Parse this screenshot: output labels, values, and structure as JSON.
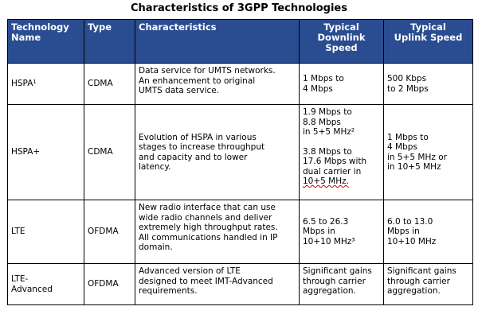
{
  "title": "Characteristics of 3GPP Technologies",
  "headers": {
    "technology_name": [
      "Technology",
      "Name"
    ],
    "type": "Type",
    "characteristics": "Characteristics",
    "downlink": [
      "Typical",
      "Downlink",
      "Speed"
    ],
    "uplink": [
      "Typical",
      "Uplink Speed"
    ]
  },
  "rows": [
    {
      "name": [
        "HSPA¹"
      ],
      "type": "CDMA",
      "characteristics": [
        "Data service for UMTS networks.",
        "An enhancement to original",
        "UMTS data service."
      ],
      "downlink": [
        "1 Mbps to",
        "4 Mbps"
      ],
      "uplink": [
        "500 Kbps",
        "to 2 Mbps"
      ]
    },
    {
      "name": [
        "HSPA+"
      ],
      "type": "CDMA",
      "characteristics": [
        "Evolution of HSPA in various",
        "stages to increase throughput",
        "and capacity and to lower",
        "latency."
      ],
      "downlink_a": [
        "1.9 Mbps to",
        "8.8 Mbps",
        "in 5+5 MHz²"
      ],
      "downlink_b": [
        "3.8 Mbps to",
        "17.6 Mbps with",
        "dual carrier in",
        "10+5 MHz."
      ],
      "uplink": [
        "1 Mbps to",
        "4 Mbps",
        "in 5+5 MHz or",
        "in 10+5 MHz"
      ]
    },
    {
      "name": [
        "LTE"
      ],
      "type": "OFDMA",
      "characteristics": [
        "New radio interface that can use",
        "wide radio channels and deliver",
        "extremely high throughput rates.",
        "All communications handled in IP",
        "domain."
      ],
      "downlink": [
        "6.5 to 26.3",
        "Mbps in",
        "10+10 MHz³"
      ],
      "uplink": [
        "6.0 to 13.0",
        "Mbps in",
        "10+10 MHz"
      ]
    },
    {
      "name": [
        "LTE-",
        "Advanced"
      ],
      "type": "OFDMA",
      "characteristics": [
        "Advanced version of LTE",
        "designed to meet IMT-Advanced",
        "requirements."
      ],
      "downlink": [
        "Significant gains",
        "through carrier",
        "aggregation."
      ],
      "uplink": [
        "Significant gains",
        "through carrier",
        "aggregation."
      ]
    }
  ]
}
